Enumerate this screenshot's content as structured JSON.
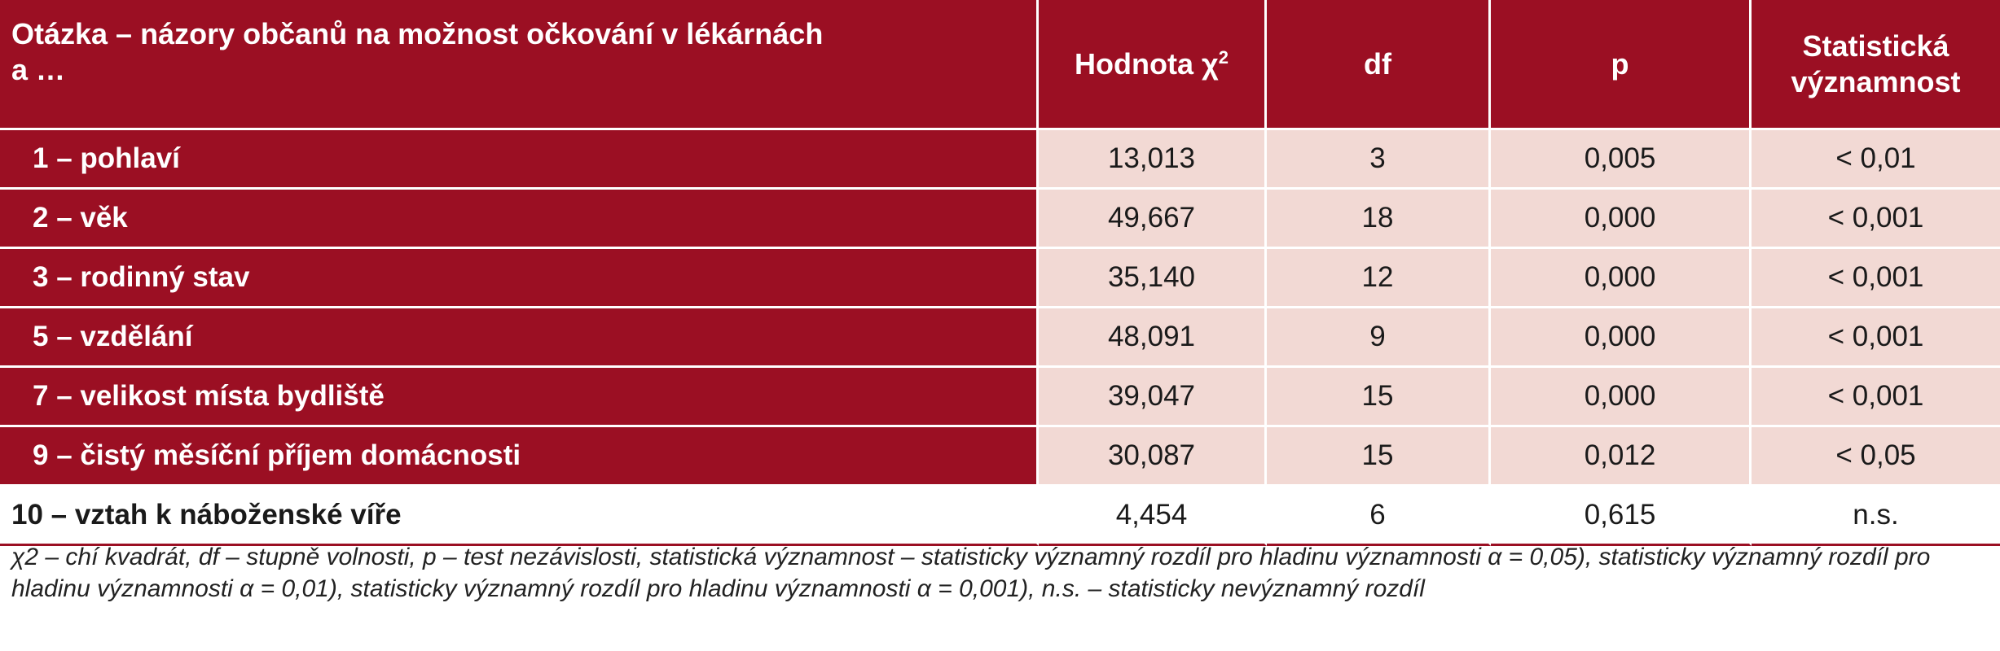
{
  "table": {
    "headers": {
      "question_line1": "Otázka – názory občanů na možnost očkování v lékárnách",
      "question_line2": "a …",
      "chi": "Hodnota χ",
      "chi_sup": "2",
      "df": "df",
      "p": "p",
      "sig_line1": "Statistická",
      "sig_line2": "významnost"
    },
    "rows": [
      {
        "label": "1 – pohlaví",
        "chi": "13,013",
        "df": "3",
        "p": "0,005",
        "sig": "< 0,01"
      },
      {
        "label": "2 – věk",
        "chi": "49,667",
        "df": "18",
        "p": "0,000",
        "sig": "< 0,001"
      },
      {
        "label": "3 – rodinný stav",
        "chi": "35,140",
        "df": "12",
        "p": "0,000",
        "sig": "< 0,001"
      },
      {
        "label": "5 – vzdělání",
        "chi": "48,091",
        "df": "9",
        "p": "0,000",
        "sig": "< 0,001"
      },
      {
        "label": "7 – velikost místa bydliště",
        "chi": "39,047",
        "df": "15",
        "p": "0,000",
        "sig": "< 0,001"
      },
      {
        "label": "9 – čistý měsíční příjem domácnosti",
        "chi": "30,087",
        "df": "15",
        "p": "0,012",
        "sig": "< 0,05"
      },
      {
        "label": "10 – vztah k náboženské víře",
        "chi": "4,454",
        "df": "6",
        "p": "0,615",
        "sig": "n.s."
      }
    ]
  },
  "footnote": "χ2 – chí kvadrát, df – stupně volnosti, p – test nezávislosti, statistická významnost – statisticky významný rozdíl pro hladinu významnosti α = 0,05), statisticky významný rozdíl pro hladinu významnosti α = 0,01), statisticky významný rozdíl pro hladinu významnosti α = 0,001), n.s. – statisticky nevýznamný rozdíl",
  "colors": {
    "header_bg": "#9b0f23",
    "cell_bg": "#f2d9d4"
  }
}
